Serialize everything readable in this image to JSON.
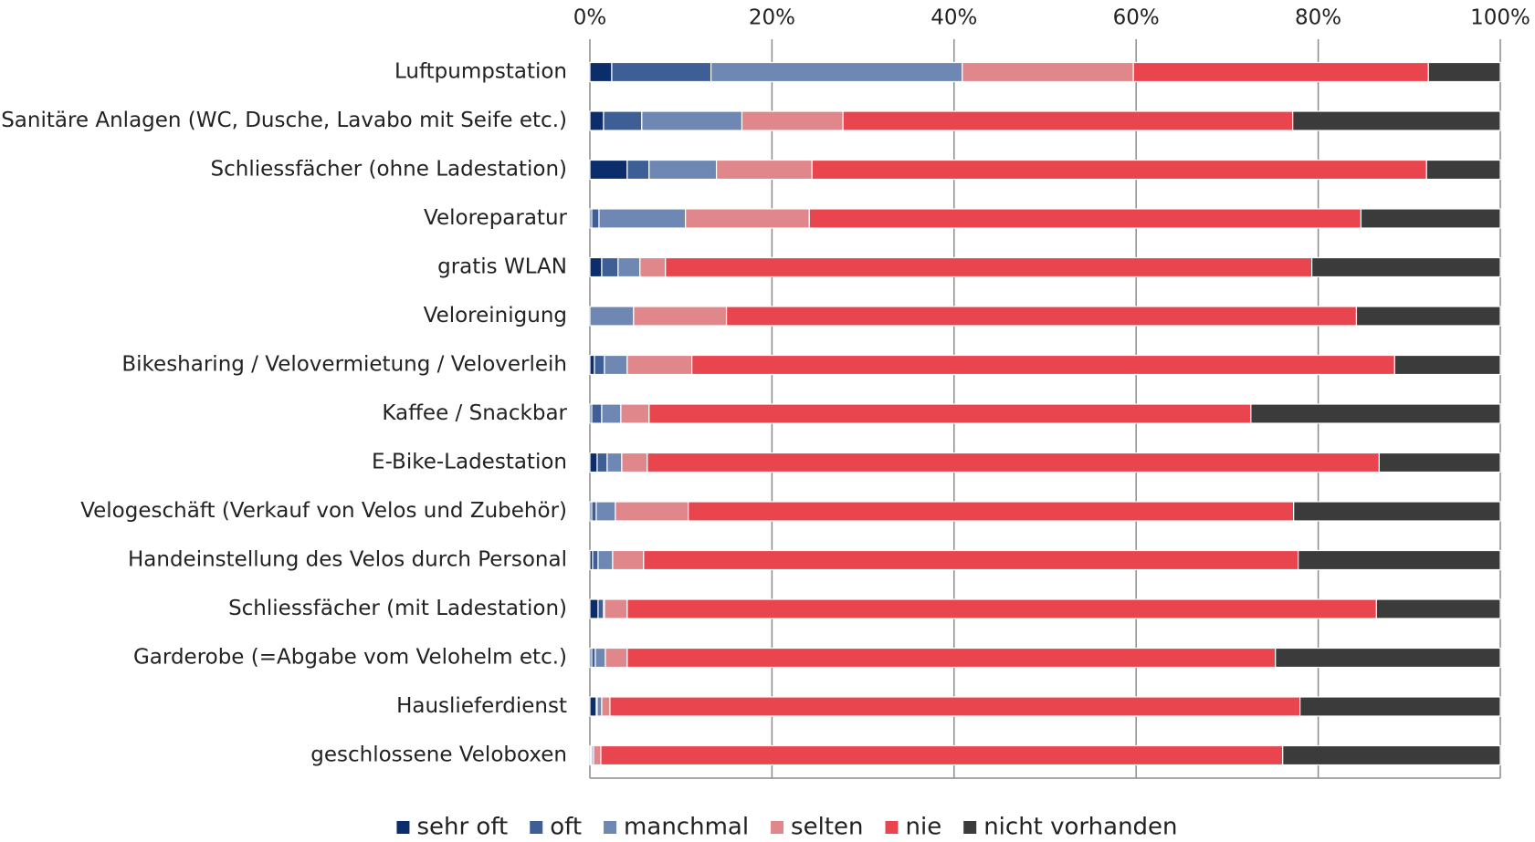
{
  "chart_data": {
    "type": "stacked-bar-horizontal",
    "categories": [
      "Luftpumpstation",
      "Sanitäre Anlagen (WC, Dusche, Lavabo mit Seife etc.)",
      "Schliessfächer (ohne Ladestation)",
      "Veloreparatur",
      "gratis WLAN",
      "Veloreinigung",
      "Bikesharing / Velovermietung / Veloverleih",
      "Kaffee / Snackbar",
      "E-Bike-Ladestation",
      "Velogeschäft (Verkauf von Velos und Zubehör)",
      "Handeinstellung des Velos durch Personal",
      "Schliessfächer (mit Ladestation)",
      "Garderobe (=Abgabe vom Velohelm etc.)",
      "Hauslieferdienst",
      "geschlossene Veloboxen"
    ],
    "series": [
      {
        "name": "sehr oft",
        "color": "#0b2d6b",
        "values": [
          2.4,
          1.5,
          4.1,
          0.2,
          1.3,
          0,
          0.5,
          0.2,
          0.8,
          0.2,
          0.3,
          0.9,
          0.2,
          0.7,
          0.1
        ]
      },
      {
        "name": "oft",
        "color": "#3d5f95",
        "values": [
          10.9,
          4.2,
          2.4,
          0.8,
          1.8,
          0,
          1.1,
          1.1,
          1.1,
          0.5,
          0.6,
          0.6,
          0.4,
          0.1,
          0.1
        ]
      },
      {
        "name": "manchmal",
        "color": "#6f88b3",
        "values": [
          27.6,
          11.0,
          7.4,
          9.5,
          2.4,
          4.8,
          2.5,
          2.1,
          1.6,
          2.1,
          1.6,
          0.1,
          1.1,
          0.5,
          0.2
        ]
      },
      {
        "name": "selten",
        "color": "#e0878c",
        "values": [
          18.8,
          11.1,
          10.5,
          13.6,
          2.8,
          10.2,
          7.1,
          3.1,
          2.8,
          8.0,
          3.4,
          2.5,
          2.4,
          0.9,
          0.8
        ]
      },
      {
        "name": "nie",
        "color": "#e8454f",
        "values": [
          32.4,
          49.4,
          67.5,
          60.6,
          71.0,
          69.2,
          77.2,
          66.1,
          80.4,
          66.5,
          71.9,
          82.3,
          71.2,
          75.8,
          74.9
        ]
      },
      {
        "name": "nicht vorhanden",
        "color": "#3b3b3b",
        "values": [
          7.9,
          22.8,
          8.1,
          15.3,
          20.7,
          15.8,
          11.6,
          27.4,
          13.3,
          22.7,
          22.2,
          13.6,
          24.7,
          22.0,
          23.9
        ]
      }
    ],
    "xlim": [
      0,
      100
    ],
    "xticks": [
      {
        "value": 0,
        "label": "0%"
      },
      {
        "value": 20,
        "label": "20%"
      },
      {
        "value": 40,
        "label": "40%"
      },
      {
        "value": 60,
        "label": "60%"
      },
      {
        "value": 80,
        "label": "80%"
      },
      {
        "value": 100,
        "label": "100%"
      }
    ],
    "grid": true,
    "legend": "bottom"
  }
}
